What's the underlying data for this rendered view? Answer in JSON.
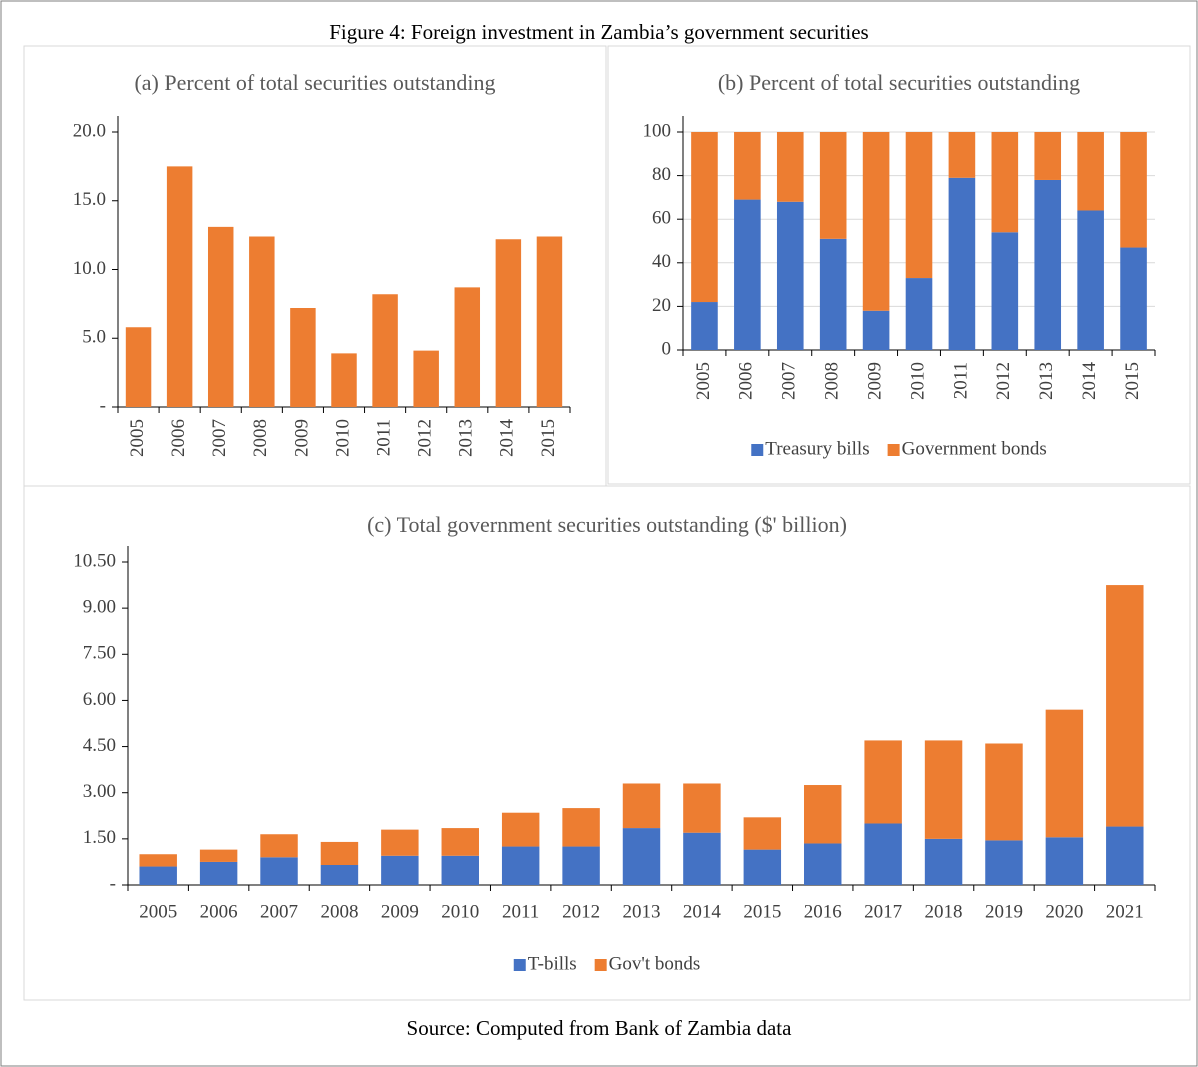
{
  "title": "Figure 4: Foreign investment in Zambia’s government securities",
  "source": "Source: Computed from Bank of Zambia data",
  "chart_data": [
    {
      "type": "bar",
      "title": "(a) Percent of total securities outstanding",
      "categories": [
        "2005",
        "2006",
        "2007",
        "2008",
        "2009",
        "2010",
        "2011",
        "2012",
        "2013",
        "2014",
        "2015"
      ],
      "values": [
        5.8,
        17.5,
        13.1,
        12.4,
        7.2,
        3.9,
        8.2,
        4.1,
        8.7,
        12.2,
        12.4
      ],
      "color": "#ed7d31",
      "ylim": [
        0,
        20
      ],
      "yticks": [
        {
          "value": 0,
          "label": "-"
        },
        {
          "value": 5,
          "label": "5.0"
        },
        {
          "value": 10,
          "label": "10.0"
        },
        {
          "value": 15,
          "label": "15.0"
        },
        {
          "value": 20,
          "label": "20.0"
        }
      ],
      "grid": false
    },
    {
      "type": "stacked_bar",
      "title": "(b) Percent of total securities outstanding",
      "categories": [
        "2005",
        "2006",
        "2007",
        "2008",
        "2009",
        "2010",
        "2011",
        "2012",
        "2013",
        "2014",
        "2015"
      ],
      "series": [
        {
          "name": "Treasury bills",
          "color": "#4472c4",
          "values": [
            22,
            69,
            68,
            51,
            18,
            33,
            79,
            54,
            78,
            64,
            47
          ]
        },
        {
          "name": "Government bonds",
          "color": "#ed7d31",
          "values": [
            78,
            31,
            32,
            49,
            82,
            67,
            21,
            46,
            22,
            36,
            53
          ]
        }
      ],
      "ylim": [
        0,
        100
      ],
      "yticks": [
        0,
        20,
        40,
        60,
        80,
        100
      ],
      "grid": true,
      "legend": "bottom"
    },
    {
      "type": "stacked_bar",
      "title": "(c) Total government securities outstanding ($' billion)",
      "categories": [
        "2005",
        "2006",
        "2007",
        "2008",
        "2009",
        "2010",
        "2011",
        "2012",
        "2013",
        "2014",
        "2015",
        "2016",
        "2017",
        "2018",
        "2019",
        "2020",
        "2021"
      ],
      "series": [
        {
          "name": "T-bills",
          "color": "#4472c4",
          "values": [
            0.6,
            0.75,
            0.9,
            0.65,
            0.95,
            0.95,
            1.25,
            1.25,
            1.85,
            1.7,
            1.15,
            1.35,
            2.0,
            1.5,
            1.45,
            1.55,
            1.9
          ]
        },
        {
          "name": "Gov't bonds",
          "color": "#ed7d31",
          "values": [
            0.4,
            0.4,
            0.75,
            0.75,
            0.85,
            0.9,
            1.1,
            1.25,
            1.45,
            1.6,
            1.05,
            1.9,
            2.7,
            3.2,
            3.15,
            4.15,
            7.85
          ]
        }
      ],
      "ylim": [
        0,
        10.5
      ],
      "yticks": [
        {
          "value": 0,
          "label": "-"
        },
        {
          "value": 1.5,
          "label": "1.50"
        },
        {
          "value": 3,
          "label": "3.00"
        },
        {
          "value": 4.5,
          "label": "4.50"
        },
        {
          "value": 6,
          "label": "6.00"
        },
        {
          "value": 7.5,
          "label": "7.50"
        },
        {
          "value": 9,
          "label": "9.00"
        },
        {
          "value": 10.5,
          "label": "10.50"
        }
      ],
      "grid": false,
      "legend": "bottom"
    }
  ]
}
